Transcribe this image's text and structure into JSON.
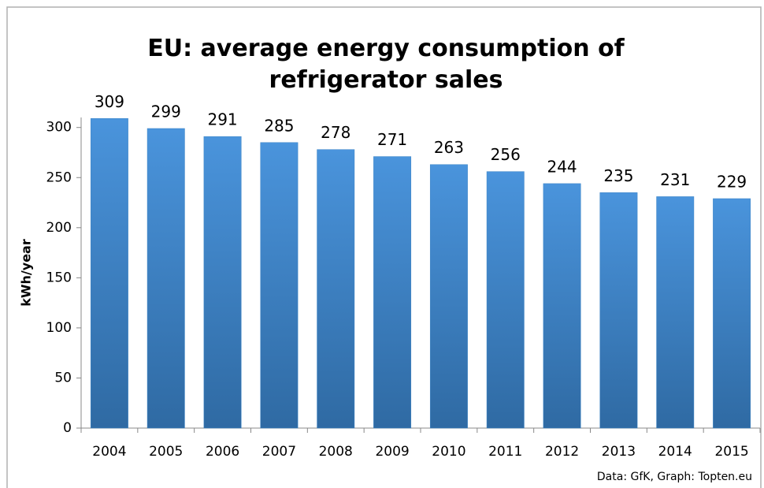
{
  "chart_data": {
    "type": "bar",
    "title": "EU: average energy consumption of refrigerator sales",
    "y_label": "kWh/year",
    "source": "Data: GfK, Graph: Topten.eu",
    "categories": [
      "2004",
      "2005",
      "2006",
      "2007",
      "2008",
      "2009",
      "2010",
      "2011",
      "2012",
      "2013",
      "2014",
      "2015"
    ],
    "values": [
      309,
      299,
      291,
      285,
      278,
      271,
      263,
      256,
      244,
      235,
      231,
      229
    ],
    "color": "#3d85c6",
    "ylim": [
      0,
      310
    ],
    "yticks": [
      0,
      50,
      100,
      150,
      200,
      250,
      300
    ],
    "grid": false
  }
}
